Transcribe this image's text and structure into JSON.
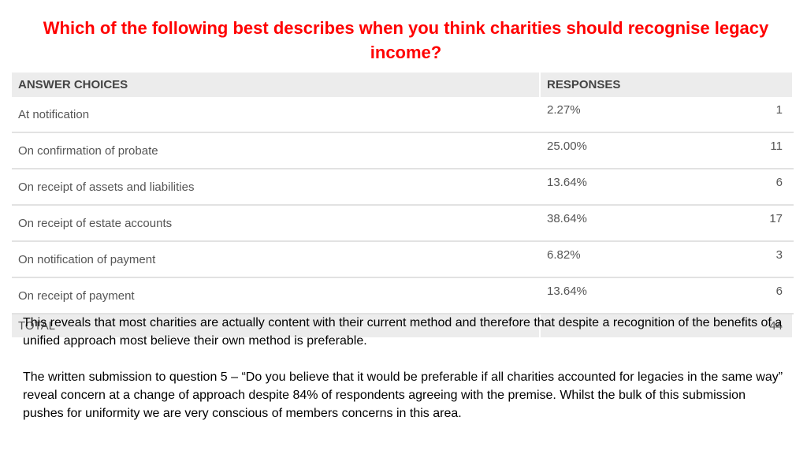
{
  "title": "Which of the following best describes when you think charities should recognise legacy income?",
  "table": {
    "headers": {
      "answer": "ANSWER CHOICES",
      "responses": "RESPONSES"
    },
    "rows": [
      {
        "answer": "At notification",
        "percent": "2.27%",
        "count": "1"
      },
      {
        "answer": "On confirmation of probate",
        "percent": "25.00%",
        "count": "11"
      },
      {
        "answer": "On receipt of assets and liabilities",
        "percent": "13.64%",
        "count": "6"
      },
      {
        "answer": "On receipt of estate accounts",
        "percent": "38.64%",
        "count": "17"
      },
      {
        "answer": "On notification of payment",
        "percent": "6.82%",
        "count": "3"
      },
      {
        "answer": "On receipt of payment",
        "percent": "13.64%",
        "count": "6"
      }
    ],
    "total": {
      "label": "TOTAL",
      "count": "44"
    }
  },
  "paragraphs": [
    "This reveals that most charities are actually content with their current method and therefore that despite a recognition of the benefits of a unified approach most believe their own method is preferable.",
    "The written submission to question 5 – “Do you believe that it would be preferable if all charities accounted for legacies in the same way” reveal concern at a change of approach despite 84% of respondents agreeing with the premise.  Whilst the bulk of this submission pushes for uniformity we are very conscious of members concerns in this area."
  ],
  "colors": {
    "title": "#ff0000",
    "header_bg": "#ececec",
    "row_divider": "#e2e2e2"
  }
}
